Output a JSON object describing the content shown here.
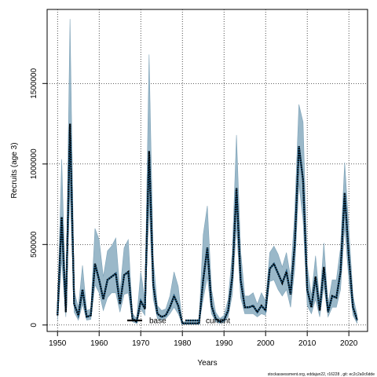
{
  "chart_data": {
    "type": "area",
    "xlabel": "Years",
    "ylabel": "Recruits (age 3)",
    "xlim": [
      1947.5,
      2024.5
    ],
    "ylim": [
      -40000,
      1960000
    ],
    "xticks": [
      1950,
      1960,
      1970,
      1980,
      1990,
      2000,
      2010,
      2020
    ],
    "yticks": [
      0,
      500000,
      1000000,
      1500000
    ],
    "ytick_labels": [
      "0",
      "500000",
      "1000000",
      "1500000"
    ],
    "grid": true,
    "legend": {
      "placement": "bottom-center",
      "entries": [
        "base",
        "current"
      ]
    },
    "footer": "stockassessment.org, eddajun22, r16228 , git: ec2c2a0c6dde",
    "colors": {
      "band": "#9ab8c9",
      "band_edge": "#7fa3b8",
      "base": "#000000",
      "current": "#1f5f8b"
    },
    "x": [
      1950,
      1951,
      1952,
      1953,
      1954,
      1955,
      1956,
      1957,
      1958,
      1959,
      1960,
      1961,
      1962,
      1963,
      1964,
      1965,
      1966,
      1967,
      1968,
      1969,
      1970,
      1971,
      1972,
      1973,
      1974,
      1975,
      1976,
      1977,
      1978,
      1979,
      1980,
      1981,
      1982,
      1983,
      1984,
      1985,
      1986,
      1987,
      1988,
      1989,
      1990,
      1991,
      1992,
      1993,
      1994,
      1995,
      1996,
      1997,
      1998,
      1999,
      2000,
      2001,
      2002,
      2003,
      2004,
      2005,
      2006,
      2007,
      2008,
      2009,
      2010,
      2011,
      2012,
      2013,
      2014,
      2015,
      2016,
      2017,
      2018,
      2019,
      2020,
      2021,
      2022
    ],
    "series": [
      {
        "name": "base",
        "values": [
          60000,
          670000,
          80000,
          1250000,
          130000,
          60000,
          220000,
          50000,
          60000,
          380000,
          280000,
          160000,
          280000,
          300000,
          320000,
          130000,
          310000,
          330000,
          40000,
          20000,
          150000,
          100000,
          1080000,
          250000,
          70000,
          50000,
          60000,
          110000,
          180000,
          120000,
          10000,
          10000,
          10000,
          10000,
          10000,
          280000,
          480000,
          120000,
          40000,
          20000,
          30000,
          90000,
          300000,
          850000,
          280000,
          110000,
          110000,
          120000,
          80000,
          120000,
          90000,
          350000,
          380000,
          320000,
          260000,
          330000,
          190000,
          500000,
          1110000,
          900000,
          220000,
          110000,
          300000,
          90000,
          360000,
          80000,
          180000,
          170000,
          330000,
          820000,
          420000,
          110000,
          30000
        ]
      },
      {
        "name": "current",
        "values": [
          60000,
          670000,
          80000,
          1250000,
          130000,
          60000,
          220000,
          50000,
          60000,
          380000,
          280000,
          160000,
          280000,
          300000,
          320000,
          130000,
          310000,
          330000,
          40000,
          20000,
          150000,
          100000,
          1080000,
          250000,
          70000,
          50000,
          60000,
          110000,
          180000,
          120000,
          10000,
          10000,
          10000,
          10000,
          10000,
          280000,
          480000,
          120000,
          40000,
          20000,
          30000,
          90000,
          300000,
          850000,
          280000,
          110000,
          110000,
          120000,
          80000,
          120000,
          90000,
          350000,
          380000,
          320000,
          260000,
          330000,
          190000,
          500000,
          1110000,
          900000,
          220000,
          110000,
          300000,
          90000,
          360000,
          80000,
          180000,
          170000,
          330000,
          820000,
          420000,
          110000,
          30000
        ]
      }
    ],
    "band_lower": [
      30000,
      400000,
      50000,
      850000,
      80000,
      30000,
      130000,
      30000,
      35000,
      250000,
      200000,
      90000,
      170000,
      200000,
      200000,
      80000,
      190000,
      200000,
      20000,
      10000,
      100000,
      60000,
      750000,
      160000,
      40000,
      30000,
      40000,
      70000,
      110000,
      70000,
      5000,
      5000,
      5000,
      5000,
      5000,
      160000,
      300000,
      70000,
      20000,
      10000,
      15000,
      50000,
      190000,
      620000,
      170000,
      70000,
      70000,
      70000,
      50000,
      70000,
      60000,
      270000,
      280000,
      220000,
      180000,
      220000,
      110000,
      350000,
      880000,
      650000,
      120000,
      70000,
      160000,
      50000,
      240000,
      50000,
      110000,
      110000,
      220000,
      610000,
      280000,
      60000,
      10000
    ],
    "band_upper": [
      100000,
      1030000,
      140000,
      1900000,
      210000,
      110000,
      370000,
      90000,
      100000,
      600000,
      530000,
      300000,
      460000,
      490000,
      540000,
      210000,
      480000,
      530000,
      70000,
      40000,
      330000,
      160000,
      1680000,
      410000,
      120000,
      90000,
      100000,
      180000,
      330000,
      240000,
      20000,
      20000,
      20000,
      20000,
      20000,
      560000,
      740000,
      220000,
      80000,
      40000,
      60000,
      160000,
      450000,
      1180000,
      460000,
      180000,
      180000,
      200000,
      130000,
      200000,
      150000,
      450000,
      490000,
      440000,
      360000,
      450000,
      300000,
      700000,
      1370000,
      1260000,
      370000,
      180000,
      430000,
      150000,
      510000,
      130000,
      280000,
      280000,
      480000,
      1010000,
      600000,
      180000,
      60000
    ]
  }
}
